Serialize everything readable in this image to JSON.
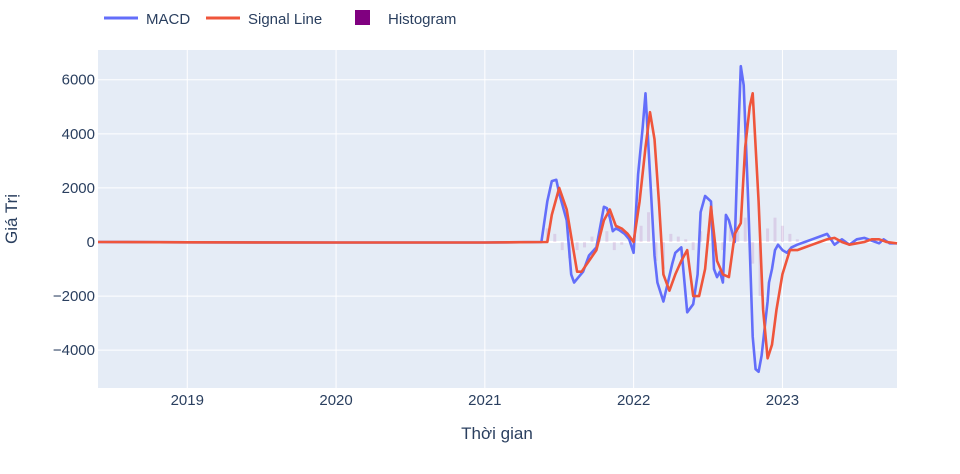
{
  "chart_data": {
    "type": "line",
    "title": "",
    "xlabel": "Thời gian",
    "ylabel": "Giá Trị",
    "x_ticks": [
      "2019",
      "2020",
      "2021",
      "2022",
      "2023"
    ],
    "x_tick_values": [
      2019.0,
      2020.0,
      2021.0,
      2022.0,
      2023.0
    ],
    "y_ticks": [
      "−4000",
      "−2000",
      "0",
      "2000",
      "4000",
      "6000"
    ],
    "y_tick_values": [
      -4000,
      -2000,
      0,
      2000,
      4000,
      6000
    ],
    "xlim": [
      2018.4,
      2023.77
    ],
    "ylim": [
      -5400,
      7100
    ],
    "grid": true,
    "legend_position": "top-left",
    "colors": {
      "plot_bg": "#e5ecf6",
      "grid": "#ffffff",
      "axis_text": "#2a3f5f"
    },
    "series": [
      {
        "name": "MACD",
        "color": "#636efa",
        "kind": "line",
        "x": [
          2018.4,
          2019.0,
          2020.0,
          2021.0,
          2021.38,
          2021.42,
          2021.45,
          2021.48,
          2021.5,
          2021.55,
          2021.58,
          2021.6,
          2021.63,
          2021.66,
          2021.7,
          2021.75,
          2021.8,
          2021.82,
          2021.84,
          2021.86,
          2021.88,
          2021.9,
          2021.94,
          2021.97,
          2022.0,
          2022.03,
          2022.06,
          2022.08,
          2022.1,
          2022.12,
          2022.14,
          2022.16,
          2022.2,
          2022.23,
          2022.26,
          2022.28,
          2022.32,
          2022.36,
          2022.4,
          2022.43,
          2022.45,
          2022.48,
          2022.52,
          2022.54,
          2022.56,
          2022.58,
          2022.6,
          2022.62,
          2022.64,
          2022.68,
          2022.7,
          2022.72,
          2022.74,
          2022.77,
          2022.8,
          2022.82,
          2022.84,
          2022.86,
          2022.88,
          2022.9,
          2022.91,
          2022.93,
          2022.95,
          2022.97,
          2023.0,
          2023.03,
          2023.06,
          2023.1,
          2023.15,
          2023.2,
          2023.25,
          2023.3,
          2023.35,
          2023.4,
          2023.45,
          2023.5,
          2023.55,
          2023.6,
          2023.65,
          2023.68,
          2023.72,
          2023.77
        ],
        "values": [
          0,
          -10,
          -20,
          -20,
          0,
          1500,
          2250,
          2300,
          1800,
          800,
          -1200,
          -1500,
          -1300,
          -1100,
          -500,
          -200,
          1300,
          1250,
          900,
          400,
          500,
          450,
          300,
          100,
          -400,
          2500,
          4200,
          5500,
          3500,
          1500,
          -500,
          -1500,
          -2200,
          -1500,
          -800,
          -400,
          -200,
          -2600,
          -2300,
          -1200,
          1100,
          1700,
          1500,
          -1000,
          -1300,
          -1100,
          -1500,
          1000,
          800,
          0,
          3500,
          6500,
          5800,
          1500,
          -3500,
          -4700,
          -4800,
          -4200,
          -3200,
          -2200,
          -1500,
          -1000,
          -300,
          -100,
          -300,
          -400,
          -200,
          -100,
          0,
          100,
          200,
          300,
          -100,
          100,
          -100,
          100,
          150,
          50,
          -50,
          100,
          -50,
          -50
        ]
      },
      {
        "name": "Signal Line",
        "color": "#ef553b",
        "kind": "line",
        "x": [
          2018.4,
          2019.0,
          2020.0,
          2021.0,
          2021.42,
          2021.45,
          2021.5,
          2021.55,
          2021.58,
          2021.62,
          2021.65,
          2021.7,
          2021.75,
          2021.8,
          2021.84,
          2021.88,
          2021.92,
          2021.96,
          2022.0,
          2022.04,
          2022.08,
          2022.11,
          2022.14,
          2022.17,
          2022.2,
          2022.24,
          2022.28,
          2022.32,
          2022.36,
          2022.4,
          2022.44,
          2022.48,
          2022.52,
          2022.56,
          2022.6,
          2022.64,
          2022.68,
          2022.72,
          2022.75,
          2022.78,
          2022.8,
          2022.84,
          2022.87,
          2022.9,
          2022.93,
          2022.96,
          2023.0,
          2023.05,
          2023.1,
          2023.15,
          2023.2,
          2023.25,
          2023.3,
          2023.35,
          2023.4,
          2023.45,
          2023.5,
          2023.55,
          2023.6,
          2023.65,
          2023.7,
          2023.77
        ],
        "values": [
          0,
          -10,
          -20,
          -20,
          0,
          1000,
          2000,
          1200,
          200,
          -1100,
          -1100,
          -700,
          -300,
          800,
          1200,
          600,
          500,
          300,
          0,
          1500,
          3500,
          4800,
          3800,
          1500,
          -1200,
          -1800,
          -1200,
          -700,
          -300,
          -2000,
          -2000,
          -1000,
          1300,
          -700,
          -1200,
          -1300,
          300,
          700,
          3500,
          5000,
          5500,
          1500,
          -2500,
          -4300,
          -3800,
          -2500,
          -1200,
          -300,
          -300,
          -200,
          -100,
          0,
          100,
          150,
          0,
          -100,
          -50,
          0,
          100,
          100,
          0,
          -50
        ]
      },
      {
        "name": "Histogram",
        "color": "#800080",
        "kind": "bar",
        "x": [
          2021.42,
          2021.47,
          2021.52,
          2021.57,
          2021.62,
          2021.67,
          2021.72,
          2021.77,
          2021.82,
          2021.87,
          2021.92,
          2022.0,
          2022.05,
          2022.1,
          2022.15,
          2022.2,
          2022.25,
          2022.3,
          2022.35,
          2022.4,
          2022.45,
          2022.5,
          2022.55,
          2022.6,
          2022.65,
          2022.7,
          2022.75,
          2022.8,
          2022.85,
          2022.9,
          2022.95,
          2023.0,
          2023.05,
          2023.1
        ],
        "values": [
          500,
          300,
          -300,
          -600,
          -300,
          -200,
          200,
          300,
          400,
          -300,
          -100,
          -200,
          600,
          1100,
          -700,
          -1000,
          300,
          200,
          100,
          -300,
          400,
          300,
          -200,
          -300,
          600,
          400,
          900,
          -800,
          -2000,
          500,
          900,
          600,
          300,
          100
        ]
      }
    ]
  }
}
